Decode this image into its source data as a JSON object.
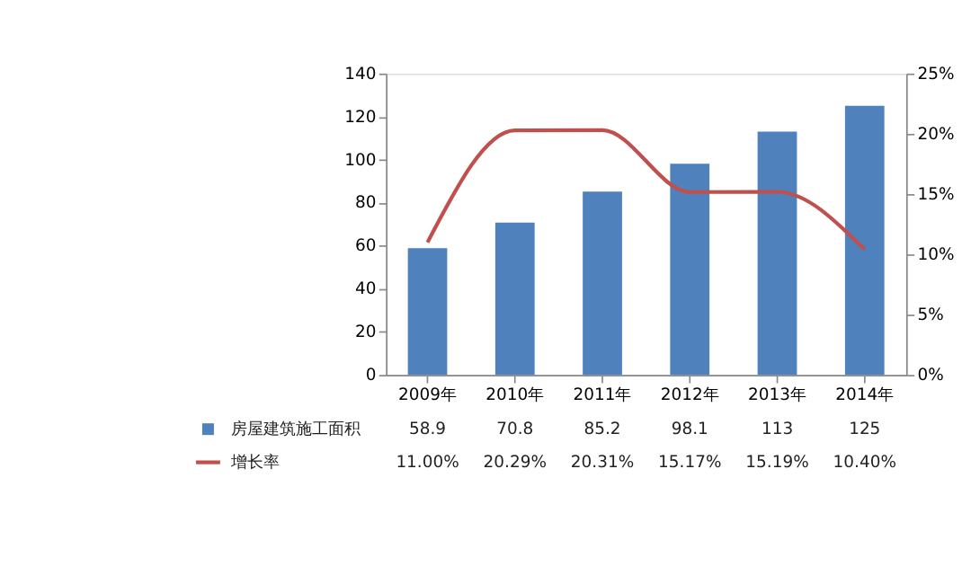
{
  "chart_data": {
    "type": "bar",
    "categories": [
      "2009年",
      "2010年",
      "2011年",
      "2012年",
      "2013年",
      "2014年"
    ],
    "series": [
      {
        "name": "房屋建筑施工面积",
        "color": "#4f81bd",
        "values": [
          58.9,
          70.8,
          85.2,
          98.1,
          113,
          125
        ]
      },
      {
        "name": "增长率",
        "type": "line",
        "axis": "y2",
        "color": "#c0504d",
        "values": [
          11.0,
          20.29,
          20.31,
          15.17,
          15.19,
          10.4
        ],
        "value_labels": [
          "11.00%",
          "20.29%",
          "20.31%",
          "15.17%",
          "15.19%",
          "10.40%"
        ]
      }
    ],
    "ylim": [
      0,
      140
    ],
    "yticks": [
      0,
      20,
      40,
      60,
      80,
      100,
      120,
      140
    ],
    "y2lim": [
      0,
      25
    ],
    "y2ticks": [
      {
        "value": 0,
        "label": "0%"
      },
      {
        "value": 5,
        "label": "5%"
      },
      {
        "value": 10,
        "label": "10%"
      },
      {
        "value": 15,
        "label": "15%"
      },
      {
        "value": 20,
        "label": "20%"
      },
      {
        "value": 25,
        "label": "25%"
      }
    ],
    "data_labels": true,
    "legend": "bottom",
    "grid": false,
    "marker": "none",
    "line_style": "solid"
  }
}
